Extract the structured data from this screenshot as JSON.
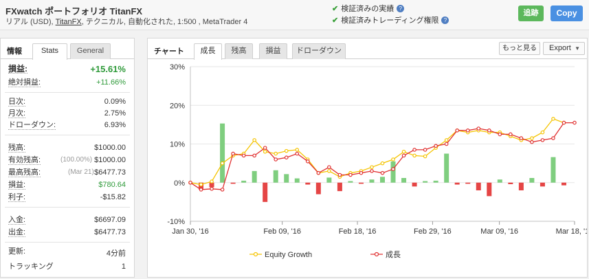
{
  "header": {
    "title": "FXwatch ポートフォリオ TitanFX",
    "sub_prefix": "リアル (USD), ",
    "sub_link": "TitanFX",
    "sub_rest": ", テクニカル, 自動化された, 1:500 , MetaTrader 4",
    "verified1": "検証済みの実績",
    "verified2": "検証済みトレーディング権限",
    "follow_btn": "追跡",
    "copy_btn": "Copy"
  },
  "left": {
    "tab_label": "情報",
    "tab_stats": "Stats",
    "tab_general": "General",
    "gain_label": "損益:",
    "gain_value": "+15.61%",
    "abs_gain_label": "絶対損益:",
    "abs_gain_value": "+11.66%",
    "daily_label": "日次:",
    "daily_value": "0.09%",
    "monthly_label": "月次:",
    "monthly_value": "2.75%",
    "drawdown_label": "ドローダウン:",
    "drawdown_value": "6.93%",
    "balance_label": "残高:",
    "balance_value": "$1000.00",
    "equity_label": "有効残高:",
    "equity_pct": "(100.00%)",
    "equity_value": "$1000.00",
    "highest_label": "最高残高:",
    "highest_date": "(Mar 21)",
    "highest_value": "$6477.73",
    "profit_label": "損益:",
    "profit_value": "$780.64",
    "interest_label": "利子:",
    "interest_value": "-$15.82",
    "deposits_label": "入金:",
    "deposits_value": "$6697.09",
    "withdrawals_label": "出金:",
    "withdrawals_value": "$6477.73",
    "updated_label": "更新:",
    "updated_value": "4分前",
    "tracking_label": "トラッキング",
    "tracking_value": "1"
  },
  "right": {
    "tab_label": "チャート",
    "tabs": [
      "成長",
      "残高",
      "損益",
      "ドローダウン"
    ],
    "more_btn": "もっと見る",
    "export_btn": "Export"
  },
  "colors": {
    "equity": "#f5c400",
    "growth": "#e03030",
    "bar_pos": "#7fce7f",
    "bar_neg": "#e54545",
    "accent_green": "#2f9a3a"
  },
  "chart_data": {
    "type": "line",
    "yticks": [
      "30%",
      "20%",
      "10%",
      "0%",
      "-10%"
    ],
    "ylim": [
      -10,
      30
    ],
    "xticks": [
      "Jan 30, '16",
      "Feb 09, '16",
      "Feb 18, '16",
      "Feb 29, '16",
      "Mar 09, '16",
      "Mar 18, '16"
    ],
    "series": [
      {
        "name": "Equity Growth",
        "values": [
          0,
          -0.5,
          0.3,
          5,
          7,
          7.5,
          11,
          8,
          7.5,
          8.2,
          8.5,
          6,
          2.5,
          3,
          1.5,
          2.5,
          3,
          4,
          5,
          6,
          8,
          7,
          6.8,
          9,
          11,
          13.5,
          13,
          13.5,
          13,
          13,
          12,
          11,
          11.5,
          13,
          16.5,
          15.5
        ]
      },
      {
        "name": "成長",
        "values": [
          0,
          -1.8,
          -1.6,
          -1.8,
          7.5,
          7,
          7,
          9,
          6,
          6.5,
          7.5,
          5.5,
          2.5,
          4,
          2,
          2,
          2.5,
          3,
          2.5,
          3.5,
          7,
          8.5,
          8.5,
          9.5,
          10,
          13.5,
          13.5,
          14,
          13.5,
          12.5,
          12.5,
          11.5,
          10.5,
          11,
          11.5,
          15.5,
          15.5
        ]
      }
    ],
    "bars": [
      {
        "idx": 1,
        "value": -1.8
      },
      {
        "idx": 2,
        "value": -1.2
      },
      {
        "idx": 3,
        "value": 15.3
      },
      {
        "idx": 4,
        "value": -0.3
      },
      {
        "idx": 5,
        "value": 0.5
      },
      {
        "idx": 6,
        "value": 3
      },
      {
        "idx": 7,
        "value": -5
      },
      {
        "idx": 8,
        "value": 3.2
      },
      {
        "idx": 9,
        "value": 2.2
      },
      {
        "idx": 10,
        "value": 1.1
      },
      {
        "idx": 11,
        "value": -0.5
      },
      {
        "idx": 12,
        "value": -3
      },
      {
        "idx": 13,
        "value": 1.3
      },
      {
        "idx": 14,
        "value": -2.2
      },
      {
        "idx": 15,
        "value": 0.4
      },
      {
        "idx": 16,
        "value": -0.3
      },
      {
        "idx": 17,
        "value": 0.8
      },
      {
        "idx": 18,
        "value": 1.5
      },
      {
        "idx": 19,
        "value": 5.5
      },
      {
        "idx": 20,
        "value": 1.2
      },
      {
        "idx": 21,
        "value": -1
      },
      {
        "idx": 22,
        "value": 0.4
      },
      {
        "idx": 23,
        "value": 0.5
      },
      {
        "idx": 24,
        "value": 7.5
      },
      {
        "idx": 25,
        "value": -0.5
      },
      {
        "idx": 26,
        "value": -0.3
      },
      {
        "idx": 27,
        "value": -2
      },
      {
        "idx": 28,
        "value": -3.5
      },
      {
        "idx": 29,
        "value": 0.8
      },
      {
        "idx": 30,
        "value": -0.4
      },
      {
        "idx": 31,
        "value": -2
      },
      {
        "idx": 32,
        "value": 1.2
      },
      {
        "idx": 33,
        "value": -1
      },
      {
        "idx": 34,
        "value": 6.6
      },
      {
        "idx": 35,
        "value": -0.7
      }
    ],
    "legend": [
      "Equity Growth",
      "成長"
    ],
    "legend_position": "bottom"
  }
}
